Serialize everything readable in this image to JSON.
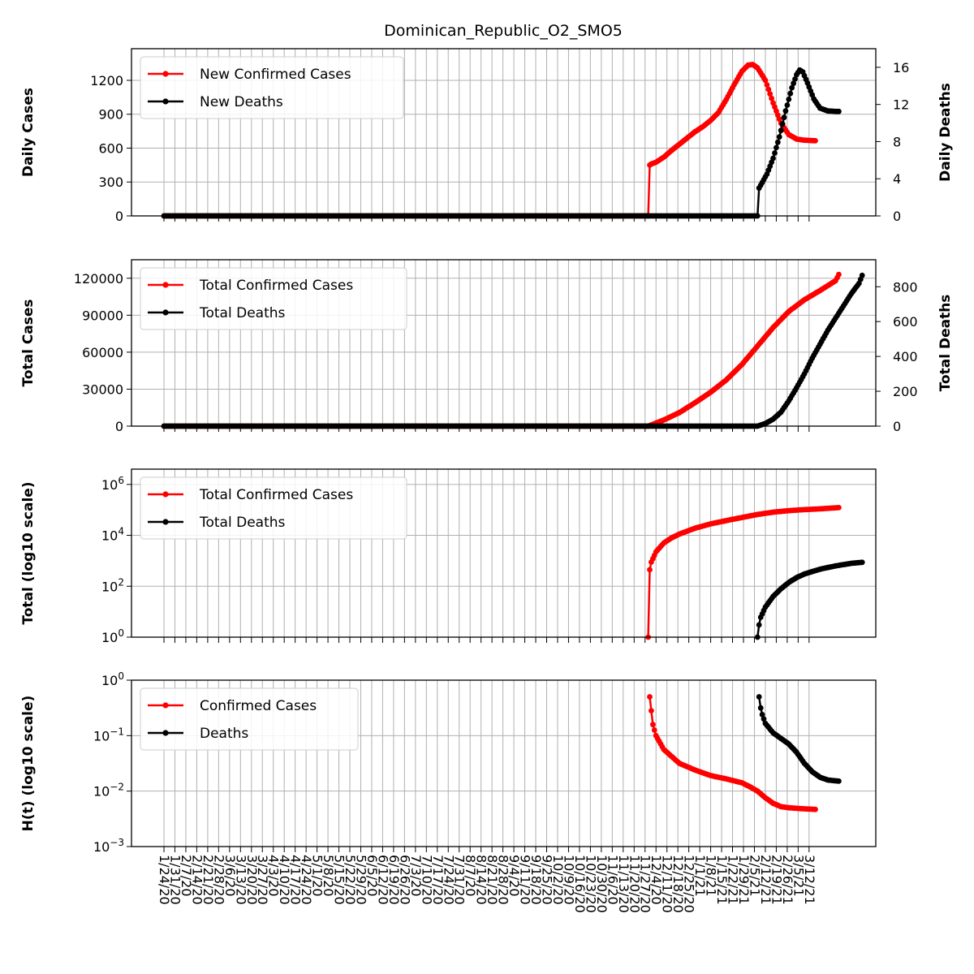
{
  "title": "Dominican_Republic_O2_SMO5",
  "colors": {
    "cases": "#ff0000",
    "deaths": "#000000",
    "grid": "#b0b0b0"
  },
  "chart_data": [
    {
      "type": "line",
      "ylabel": "Daily Cases",
      "y2label": "Daily Deaths",
      "yscale": "linear",
      "ylim": [
        0,
        1480
      ],
      "yticks": [
        0,
        300,
        600,
        900,
        1200
      ],
      "y2lim": [
        0,
        18.0
      ],
      "y2ticks": [
        0,
        4,
        8,
        12,
        16
      ],
      "legend_location": "upper-left",
      "series": [
        {
          "name": "New Confirmed Cases",
          "axis": "left",
          "start_day": 0,
          "knots": [
            [
              0,
              0
            ],
            [
              310,
              0
            ],
            [
              311,
              450
            ],
            [
              312,
              460
            ],
            [
              315,
              475
            ],
            [
              320,
              520
            ],
            [
              325,
              580
            ],
            [
              330,
              635
            ],
            [
              335,
              690
            ],
            [
              340,
              745
            ],
            [
              345,
              790
            ],
            [
              350,
              845
            ],
            [
              355,
              915
            ],
            [
              360,
              1030
            ],
            [
              365,
              1160
            ],
            [
              370,
              1280
            ],
            [
              374,
              1335
            ],
            [
              377,
              1340
            ],
            [
              380,
              1310
            ],
            [
              385,
              1200
            ],
            [
              390,
              1000
            ],
            [
              395,
              820
            ],
            [
              400,
              720
            ],
            [
              405,
              680
            ],
            [
              410,
              670
            ],
            [
              415,
              667
            ],
            [
              417,
              665
            ]
          ]
        },
        {
          "name": "New Deaths",
          "axis": "right",
          "start_day": 0,
          "knots": [
            [
              0,
              0
            ],
            [
              380,
              0
            ],
            [
              381,
              3.0
            ],
            [
              383,
              3.6
            ],
            [
              386,
              4.5
            ],
            [
              390,
              6.2
            ],
            [
              394,
              8.5
            ],
            [
              398,
              11.3
            ],
            [
              402,
              13.8
            ],
            [
              405,
              15.2
            ],
            [
              407,
              15.7
            ],
            [
              409,
              15.5
            ],
            [
              412,
              14.3
            ],
            [
              416,
              12.6
            ],
            [
              420,
              11.6
            ],
            [
              425,
              11.3
            ],
            [
              430,
              11.25
            ],
            [
              432,
              11.25
            ]
          ]
        }
      ]
    },
    {
      "type": "line",
      "ylabel": "Total Cases",
      "y2label": "Total Deaths",
      "yscale": "linear",
      "ylim": [
        0,
        135000
      ],
      "yticks": [
        0,
        30000,
        60000,
        90000,
        120000
      ],
      "y2lim": [
        0,
        955
      ],
      "y2ticks": [
        0,
        200,
        400,
        600,
        800
      ],
      "legend_location": "upper-left",
      "series": [
        {
          "name": "Total Confirmed Cases",
          "axis": "left",
          "start_day": 0,
          "knots": [
            [
              0,
              0
            ],
            [
              310,
              0
            ],
            [
              311,
              450
            ],
            [
              320,
              5000
            ],
            [
              330,
              11000
            ],
            [
              340,
              19000
            ],
            [
              350,
              27500
            ],
            [
              360,
              37500
            ],
            [
              370,
              50000
            ],
            [
              380,
              65000
            ],
            [
              390,
              80000
            ],
            [
              400,
              93000
            ],
            [
              410,
              102500
            ],
            [
              420,
              110000
            ],
            [
              430,
              118000
            ],
            [
              432,
              123000
            ]
          ]
        },
        {
          "name": "Total Deaths",
          "axis": "right",
          "start_day": 0,
          "knots": [
            [
              0,
              0
            ],
            [
              380,
              0
            ],
            [
              381,
              3
            ],
            [
              385,
              15
            ],
            [
              390,
              40
            ],
            [
              395,
              80
            ],
            [
              400,
              145
            ],
            [
              405,
              220
            ],
            [
              410,
              300
            ],
            [
              415,
              390
            ],
            [
              420,
              470
            ],
            [
              425,
              550
            ],
            [
              430,
              620
            ],
            [
              435,
              690
            ],
            [
              440,
              760
            ],
            [
              445,
              820
            ],
            [
              447,
              865
            ]
          ]
        }
      ]
    },
    {
      "type": "line",
      "ylabel": "Total (log10 scale)",
      "yscale": "log",
      "ylim_log10": [
        0,
        6.6
      ],
      "yticks": [
        "10^0",
        "10^2",
        "10^4",
        "10^6"
      ],
      "legend_location": "upper-left",
      "series": [
        {
          "name": "Total Confirmed Cases",
          "start_day": 0,
          "knots": [
            [
              310,
              0
            ],
            [
              311,
              2.65
            ],
            [
              312,
              2.95
            ],
            [
              315,
              3.35
            ],
            [
              320,
              3.7
            ],
            [
              325,
              3.9
            ],
            [
              330,
              4.05
            ],
            [
              340,
              4.28
            ],
            [
              350,
              4.45
            ],
            [
              360,
              4.58
            ],
            [
              370,
              4.7
            ],
            [
              380,
              4.82
            ],
            [
              390,
              4.91
            ],
            [
              400,
              4.97
            ],
            [
              410,
              5.01
            ],
            [
              420,
              5.04
            ],
            [
              432,
              5.09
            ]
          ]
        },
        {
          "name": "Total Deaths",
          "start_day": 0,
          "knots": [
            [
              380,
              0
            ],
            [
              381,
              0.48
            ],
            [
              382,
              0.78
            ],
            [
              385,
              1.18
            ],
            [
              390,
              1.6
            ],
            [
              395,
              1.9
            ],
            [
              400,
              2.15
            ],
            [
              405,
              2.34
            ],
            [
              410,
              2.48
            ],
            [
              420,
              2.67
            ],
            [
              430,
              2.8
            ],
            [
              440,
              2.9
            ],
            [
              447,
              2.94
            ]
          ]
        }
      ]
    },
    {
      "type": "line",
      "ylabel": "H(t) (log10 scale)",
      "yscale": "log",
      "ylim_log10": [
        -3,
        0
      ],
      "yticks": [
        "10^-3",
        "10^-2",
        "10^-1",
        "10^0"
      ],
      "legend_location": "upper-left",
      "series": [
        {
          "name": "Confirmed Cases",
          "start_day": 0,
          "knots": [
            [
              311,
              -0.3
            ],
            [
              312,
              -0.55
            ],
            [
              313,
              -0.8
            ],
            [
              315,
              -1.0
            ],
            [
              320,
              -1.25
            ],
            [
              330,
              -1.5
            ],
            [
              340,
              -1.62
            ],
            [
              350,
              -1.72
            ],
            [
              360,
              -1.78
            ],
            [
              370,
              -1.85
            ],
            [
              375,
              -1.92
            ],
            [
              380,
              -2.0
            ],
            [
              385,
              -2.12
            ],
            [
              390,
              -2.22
            ],
            [
              395,
              -2.28
            ],
            [
              400,
              -2.3
            ],
            [
              410,
              -2.32
            ],
            [
              417,
              -2.33
            ]
          ]
        },
        {
          "name": "Deaths",
          "start_day": 0,
          "knots": [
            [
              381,
              -0.3
            ],
            [
              382,
              -0.5
            ],
            [
              383,
              -0.62
            ],
            [
              385,
              -0.78
            ],
            [
              390,
              -0.95
            ],
            [
              395,
              -1.05
            ],
            [
              400,
              -1.15
            ],
            [
              405,
              -1.3
            ],
            [
              410,
              -1.5
            ],
            [
              415,
              -1.65
            ],
            [
              420,
              -1.75
            ],
            [
              425,
              -1.8
            ],
            [
              432,
              -1.82
            ]
          ]
        }
      ]
    }
  ],
  "x_axis": {
    "start_date": "1/24/20",
    "end_date": "3/19/21",
    "tick_interval_days": 7,
    "tick_labels": [
      "1/24/20",
      "1/31/20",
      "2/7/20",
      "2/14/20",
      "2/21/20",
      "2/28/20",
      "3/6/20",
      "3/13/20",
      "3/20/20",
      "3/27/20",
      "4/3/20",
      "4/10/20",
      "4/17/20",
      "4/24/20",
      "5/1/20",
      "5/8/20",
      "5/15/20",
      "5/22/20",
      "5/29/20",
      "6/5/20",
      "6/12/20",
      "6/19/20",
      "6/26/20",
      "7/3/20",
      "7/10/20",
      "7/17/20",
      "7/24/20",
      "7/31/20",
      "8/7/20",
      "8/14/20",
      "8/21/20",
      "8/28/20",
      "9/4/20",
      "9/11/20",
      "9/18/20",
      "9/25/20",
      "10/2/20",
      "10/9/20",
      "10/16/20",
      "10/23/20",
      "10/30/20",
      "11/6/20",
      "11/13/20",
      "11/20/20",
      "11/27/20",
      "12/4/20",
      "12/11/20",
      "12/18/20",
      "12/25/20",
      "1/1/21",
      "1/8/21",
      "1/15/21",
      "1/22/21",
      "1/29/21",
      "2/5/21",
      "2/12/21",
      "2/19/21",
      "2/26/21",
      "3/5/21",
      "3/12/21"
    ]
  }
}
